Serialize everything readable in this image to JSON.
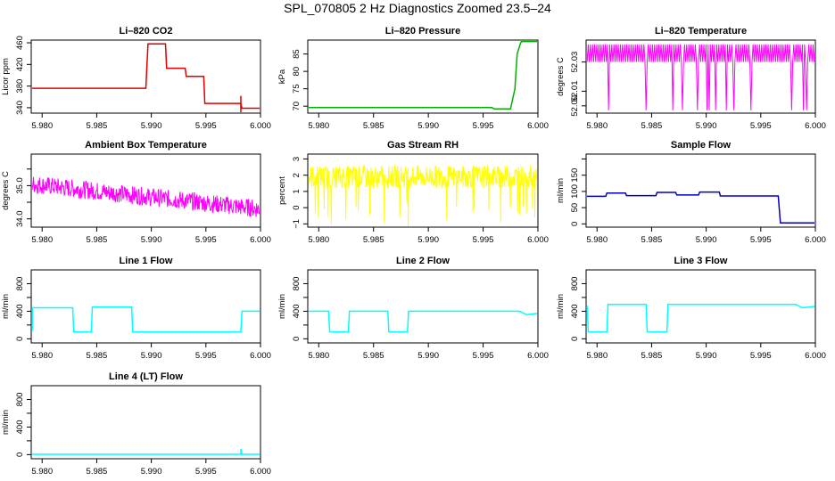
{
  "title": "SPL_070805  2 Hz Diagnostics Zoomed 23.5–24",
  "chart_data": [
    {
      "type": "line",
      "title": "Li–820 CO2",
      "ylabel": "Licor ppm",
      "color": "#e00000",
      "xlim": [
        5.979,
        6.0
      ],
      "ylim": [
        330,
        465
      ],
      "xticks": [
        "5.980",
        "5.985",
        "5.990",
        "5.995",
        "6.000"
      ],
      "yticks": [
        340,
        380,
        420,
        460
      ],
      "ytick_labels": [
        "340",
        "380",
        "420",
        "460"
      ],
      "series": [
        {
          "name": "CO2",
          "x": [
            5.979,
            5.9895,
            5.9897,
            5.9913,
            5.9914,
            5.9931,
            5.9932,
            5.9948,
            5.9949,
            5.9982,
            5.9983,
            6.0
          ],
          "y": [
            376,
            376,
            458,
            458,
            413,
            413,
            398,
            398,
            348,
            348,
            339,
            339
          ],
          "spikes": [
            {
              "x": 5.9982,
              "y1": 330,
              "y2": 362
            }
          ]
        }
      ]
    },
    {
      "type": "line",
      "title": "Li–820 Pressure",
      "ylabel": "kPa",
      "color": "#00b000",
      "xlim": [
        5.979,
        6.0
      ],
      "ylim": [
        68,
        89
      ],
      "xticks": [
        "5.980",
        "5.985",
        "5.990",
        "5.995",
        "6.000"
      ],
      "yticks": [
        70,
        75,
        80,
        85
      ],
      "ytick_labels": [
        "70",
        "75",
        "80",
        "85"
      ],
      "series": [
        {
          "name": "Pressure",
          "x": [
            5.979,
            5.9958,
            5.996,
            5.9975,
            5.9979,
            5.9981,
            5.9984,
            5.9985,
            6.0
          ],
          "y": [
            69.6,
            69.6,
            69.2,
            69.2,
            75,
            85,
            88,
            88.6,
            88.6
          ]
        }
      ]
    },
    {
      "type": "line",
      "title": "Li–820 Temperature",
      "ylabel": "degrees C",
      "color": "#ff00ff",
      "xlim": [
        5.979,
        6.0
      ],
      "ylim": [
        51.995,
        52.045
      ],
      "xticks": [
        "5.980",
        "5.985",
        "5.990",
        "5.995",
        "6.000"
      ],
      "yticks": [
        52.0,
        52.01,
        52.03
      ],
      "ytick_labels": [
        "52.00",
        "52.01",
        "52.03"
      ],
      "series": [
        {
          "name": "Temperature",
          "y_high": 52.042,
          "y_low": 52.03,
          "y_floor": 51.997
        }
      ]
    },
    {
      "type": "line",
      "title": "Ambient Box Temperature",
      "ylabel": "degrees C",
      "color": "#ff00ff",
      "xlim": [
        5.979,
        6.0
      ],
      "ylim": [
        33.75,
        35.95
      ],
      "xticks": [
        "5.980",
        "5.985",
        "5.990",
        "5.995",
        "6.000"
      ],
      "yticks": [
        34.0,
        34.5,
        35.0,
        35.5
      ],
      "ytick_labels": [
        "34.0",
        "",
        "35.0",
        ""
      ],
      "series": [
        {
          "name": "Box Temp",
          "start": 35.05,
          "end": 34.3,
          "noise": 0.55
        }
      ]
    },
    {
      "type": "line",
      "title": "Gas Stream RH",
      "ylabel": "percent",
      "color": "#ffff00",
      "xlim": [
        5.979,
        6.0
      ],
      "ylim": [
        -1.2,
        3.3
      ],
      "xticks": [
        "5.980",
        "5.985",
        "5.990",
        "5.995",
        "6.000"
      ],
      "yticks": [
        -1,
        0,
        1,
        2,
        3
      ],
      "ytick_labels": [
        "−1",
        "0",
        "1",
        "2",
        "3"
      ],
      "series": [
        {
          "name": "RH",
          "level": 1.9,
          "noise": 1.4
        }
      ]
    },
    {
      "type": "line",
      "title": "Sample Flow",
      "ylabel": "ml/min",
      "color": "#0000c0",
      "xlim": [
        5.979,
        6.0
      ],
      "ylim": [
        -10,
        215
      ],
      "xticks": [
        "5.980",
        "5.985",
        "5.990",
        "5.995",
        "6.000"
      ],
      "yticks": [
        0,
        50,
        100,
        150,
        200
      ],
      "ytick_labels": [
        "0",
        "50",
        "100",
        "150",
        ""
      ],
      "series": [
        {
          "name": "Sample Flow",
          "x": [
            5.979,
            5.9808,
            5.9809,
            5.9826,
            5.9827,
            5.9854,
            5.9855,
            5.9872,
            5.9873,
            5.9893,
            5.9894,
            5.9912,
            5.9913,
            5.9966,
            5.9968,
            6.0
          ],
          "y": [
            85,
            85,
            95,
            95,
            87,
            87,
            97,
            97,
            89,
            89,
            98,
            98,
            86,
            86,
            3,
            3
          ]
        }
      ]
    },
    {
      "type": "line",
      "title": "Line 1 Flow",
      "ylabel": "ml/min",
      "color": "#00ffff",
      "xlim": [
        5.979,
        6.0
      ],
      "ylim": [
        -60,
        1000
      ],
      "xticks": [
        "5.980",
        "5.985",
        "5.990",
        "5.995",
        "6.000"
      ],
      "yticks": [
        0,
        200,
        400,
        600,
        800
      ],
      "ytick_labels": [
        "0",
        "",
        "400",
        "",
        "800"
      ],
      "series": [
        {
          "name": "Line 1",
          "x": [
            5.9791,
            5.9791,
            5.9828,
            5.9829,
            5.9845,
            5.9846,
            5.9882,
            5.9883,
            5.9982,
            5.9983,
            6.0
          ],
          "y": [
            120,
            450,
            450,
            100,
            100,
            460,
            460,
            100,
            100,
            400,
            400
          ]
        }
      ]
    },
    {
      "type": "line",
      "title": "Line 2 Flow",
      "ylabel": "ml/min",
      "color": "#00ffff",
      "xlim": [
        5.979,
        6.0
      ],
      "ylim": [
        -60,
        1000
      ],
      "xticks": [
        "5.980",
        "5.985",
        "5.990",
        "5.995",
        "6.000"
      ],
      "yticks": [
        0,
        200,
        400,
        600,
        800
      ],
      "ytick_labels": [
        "0",
        "",
        "400",
        "",
        "800"
      ],
      "series": [
        {
          "name": "Line 2",
          "x": [
            5.979,
            5.9809,
            5.981,
            5.9827,
            5.9828,
            5.9863,
            5.9864,
            5.9881,
            5.9882,
            5.9983,
            5.999,
            6.0
          ],
          "y": [
            400,
            400,
            100,
            100,
            400,
            400,
            100,
            100,
            400,
            400,
            350,
            370
          ]
        }
      ]
    },
    {
      "type": "line",
      "title": "Line 3 Flow",
      "ylabel": "ml/min",
      "color": "#00ffff",
      "xlim": [
        5.979,
        6.0
      ],
      "ylim": [
        -60,
        1000
      ],
      "xticks": [
        "5.980",
        "5.985",
        "5.990",
        "5.995",
        "6.000"
      ],
      "yticks": [
        0,
        200,
        400,
        600,
        800
      ],
      "ytick_labels": [
        "0",
        "",
        "400",
        "",
        "800"
      ],
      "series": [
        {
          "name": "Line 3",
          "x": [
            5.9791,
            5.9792,
            5.9809,
            5.981,
            5.9845,
            5.9846,
            5.9864,
            5.9865,
            5.9982,
            5.9988,
            6.0
          ],
          "y": [
            480,
            100,
            100,
            500,
            500,
            100,
            100,
            500,
            500,
            450,
            470
          ]
        }
      ]
    },
    {
      "type": "line",
      "title": "Line 4 (LT) Flow",
      "ylabel": "ml/min",
      "color": "#00ffff",
      "xlim": [
        5.979,
        6.0
      ],
      "ylim": [
        -60,
        1000
      ],
      "xticks": [
        "5.980",
        "5.985",
        "5.990",
        "5.995",
        "6.000"
      ],
      "yticks": [
        0,
        200,
        400,
        600,
        800
      ],
      "ytick_labels": [
        "0",
        "",
        "400",
        "",
        "800"
      ],
      "series": [
        {
          "name": "Line 4",
          "x": [
            5.979,
            5.9982,
            5.9982,
            5.9983,
            6.0
          ],
          "y": [
            5,
            5,
            80,
            5,
            5
          ]
        }
      ]
    }
  ]
}
